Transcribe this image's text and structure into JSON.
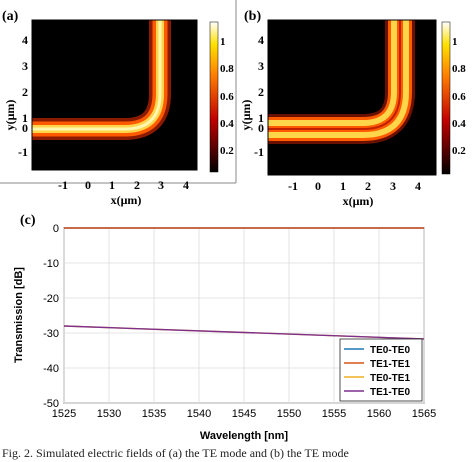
{
  "figure": {
    "panel_labels": {
      "a": "(a)",
      "b": "(b)",
      "c": "(c)"
    },
    "caption_partial": "Fig. 2.  Simulated electric fields of (a) the TE  mode and (b) the TE  mode"
  },
  "colors": {
    "field_bg": "#000000",
    "field_hot": "#ffe060",
    "field_warm": "#ff6a00",
    "te0_te0": "#1f77b4",
    "te1_te1": "#d95319",
    "te0_te1": "#edb120",
    "te1_te0": "#7e2f8e"
  },
  "chart_data": [
    {
      "type": "heatmap",
      "panel": "(a)",
      "xlabel": "x(μm)",
      "ylabel": "y(μm)",
      "xticks": [
        "-1",
        "0",
        "1",
        "2",
        "3",
        "4"
      ],
      "yticks": [
        "4",
        "3",
        "2",
        "1",
        "0",
        "-1"
      ],
      "xlim": [
        -1.6,
        4.6
      ],
      "ylim": [
        -1.6,
        4.6
      ],
      "colorbar": {
        "ticks": [
          "1",
          "0.8",
          "0.6",
          "0.4",
          "0.2"
        ],
        "range": [
          0,
          1.1
        ]
      },
      "mode": "single-lobe bend (TE0)"
    },
    {
      "type": "heatmap",
      "panel": "(b)",
      "xlabel": "x(μm)",
      "ylabel": "y(μm)",
      "xticks": [
        "-1",
        "0",
        "1",
        "2",
        "3",
        "4"
      ],
      "yticks": [
        "4",
        "3",
        "2",
        "1",
        "0",
        "-1"
      ],
      "xlim": [
        -1.6,
        4.6
      ],
      "ylim": [
        -1.6,
        4.6
      ],
      "colorbar": {
        "ticks": [
          "1",
          "0.8",
          "0.6",
          "0.4",
          "0.2"
        ],
        "range": [
          0,
          1.1
        ]
      },
      "mode": "double-lobe bend (TE1)"
    },
    {
      "type": "line",
      "panel": "(c)",
      "xlabel": "Wavelength [nm]",
      "ylabel": "Transmission [dB]",
      "xlim": [
        1525,
        1565
      ],
      "ylim": [
        -50,
        0
      ],
      "xticks": [
        "1525",
        "1530",
        "1535",
        "1540",
        "1545",
        "1550",
        "1555",
        "1560",
        "1565"
      ],
      "yticks": [
        "0",
        "-10",
        "-20",
        "-30",
        "-40",
        "-50"
      ],
      "grid": true,
      "legend_position": "bottom-right",
      "x": [
        1525,
        1565
      ],
      "series": [
        {
          "name": "TE0-TE0",
          "values": [
            0,
            0
          ]
        },
        {
          "name": "TE1-TE1",
          "values": [
            0,
            0
          ]
        },
        {
          "name": "TE0-TE1",
          "values": [
            -28,
            -31.7
          ]
        },
        {
          "name": "TE1-TE0",
          "values": [
            -28,
            -31.7
          ]
        }
      ]
    }
  ]
}
